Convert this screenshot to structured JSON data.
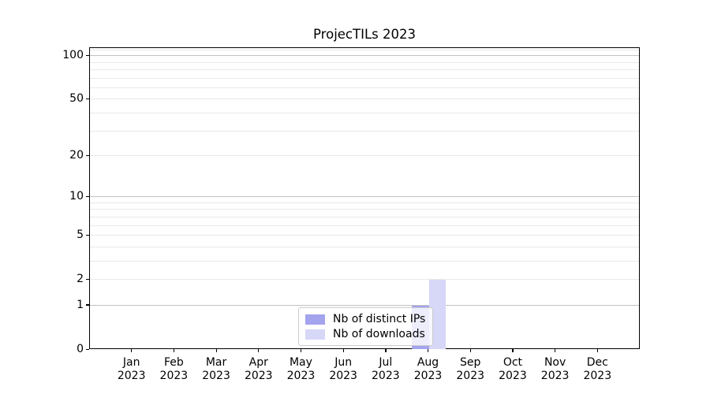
{
  "title": "ProjecTILs 2023",
  "chart_data": {
    "type": "bar",
    "title": "ProjecTILs 2023",
    "categories": [
      "Jan",
      "Feb",
      "Mar",
      "Apr",
      "May",
      "Jun",
      "Jul",
      "Aug",
      "Sep",
      "Oct",
      "Nov",
      "Dec"
    ],
    "x_year_label": "2023",
    "series": [
      {
        "name": "Nb of distinct IPs",
        "color": "#a3a3ee",
        "values": [
          0,
          0,
          0,
          0,
          0,
          0,
          0,
          1,
          0,
          0,
          0,
          0
        ]
      },
      {
        "name": "Nb of downloads",
        "color": "#d7d7f8",
        "values": [
          0,
          0,
          0,
          0,
          0,
          0,
          0,
          2,
          0,
          0,
          0,
          0
        ]
      }
    ],
    "yscale": "log1p",
    "ylim": [
      0,
      113.5
    ],
    "y_ticks": [
      0,
      1,
      2,
      5,
      10,
      20,
      50,
      100
    ],
    "y_major_gridlines": [
      1,
      10,
      100
    ],
    "y_minor_gridlines": [
      2,
      3,
      4,
      5,
      6,
      7,
      8,
      9,
      20,
      30,
      40,
      50,
      60,
      70,
      80,
      90,
      110
    ],
    "grid": true,
    "legend_position": "lower center",
    "colors": {
      "major_grid": "#c2c2c2",
      "minor_grid": "#e9e9e9",
      "spine": "#000000",
      "text": "#000000"
    }
  }
}
